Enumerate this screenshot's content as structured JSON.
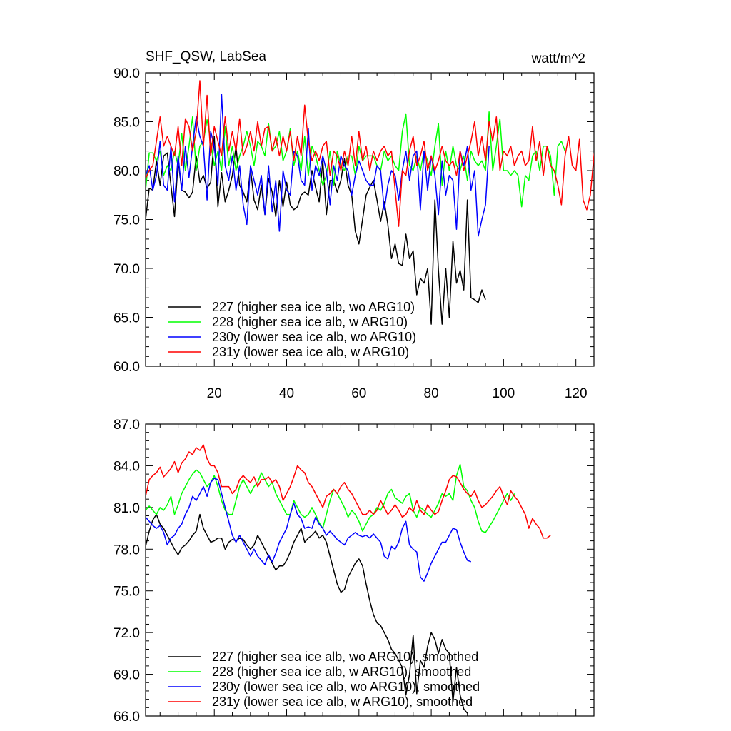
{
  "chart_data": [
    {
      "type": "line",
      "title": "SHF_QSW, LabSea",
      "units": "watt/m^2",
      "xlim": [
        1,
        125
      ],
      "ylim": [
        60,
        90
      ],
      "xticks": [
        20,
        40,
        60,
        80,
        100,
        120
      ],
      "yticks": [
        60,
        65,
        70,
        75,
        80,
        85,
        90
      ],
      "ytick_labels": [
        "60.0",
        "65.0",
        "70.0",
        "75.0",
        "80.0",
        "85.0",
        "90.0"
      ],
      "xtick_labels": [
        "20",
        "40",
        "60",
        "80",
        "100",
        "120"
      ],
      "legend_position": "bottom-left",
      "series": [
        {
          "name": "227 (higher sea ice alb, wo ARG10)",
          "color": "#000000",
          "values": [
            75.0,
            78.2,
            78.0,
            81.0,
            78.5,
            81.5,
            81.8,
            78.5,
            75.3,
            81.0,
            78.0,
            77.8,
            77.2,
            77.8,
            81.5,
            78.8,
            79.5,
            78.2,
            78.8,
            83.5,
            76.3,
            79.8,
            76.8,
            78.0,
            79.5,
            82.5,
            78.5,
            77.8,
            76.8,
            80.2,
            77.0,
            76.0,
            78.5,
            75.5,
            79.2,
            77.8,
            75.3,
            79.0,
            76.3,
            78.8,
            76.5,
            76.0,
            76.3,
            77.5,
            77.8,
            77.5,
            80.0,
            78.3,
            76.8,
            81.0,
            75.5,
            79.0,
            79.0,
            77.8,
            79.0,
            81.2,
            78.5,
            77.5,
            73.8,
            72.5,
            75.0,
            77.5,
            78.3,
            79.0,
            77.0,
            74.8,
            76.8,
            74.5,
            71.0,
            72.5,
            70.5,
            70.3,
            73.5,
            71.0,
            71.8,
            67.3,
            69.0,
            68.5,
            70.0,
            64.3,
            77.0,
            69.8,
            64.3,
            70.0,
            65.0,
            72.8,
            68.5,
            69.8,
            67.8,
            77.0,
            67.0,
            66.8,
            66.5,
            67.8,
            66.8
          ]
        },
        {
          "name": "228 (higher sea ice alb, w ARG10)",
          "color": "#00ff00",
          "values": [
            78.0,
            81.8,
            81.8,
            81.0,
            82.0,
            79.5,
            80.5,
            80.0,
            82.0,
            80.5,
            83.8,
            80.0,
            82.5,
            85.5,
            80.0,
            82.5,
            83.0,
            85.2,
            83.0,
            80.5,
            82.0,
            80.0,
            84.5,
            80.5,
            82.5,
            80.0,
            81.5,
            82.5,
            84.0,
            82.5,
            80.5,
            83.0,
            82.5,
            81.5,
            84.8,
            82.0,
            82.5,
            84.0,
            81.0,
            82.0,
            84.3,
            80.5,
            82.0,
            80.0,
            83.5,
            79.5,
            82.5,
            81.5,
            80.0,
            78.5,
            79.5,
            82.0,
            78.5,
            82.0,
            80.5,
            80.0,
            81.5,
            81.5,
            79.5,
            82.5,
            81.0,
            81.5,
            81.5,
            81.5,
            80.5,
            80.0,
            82.0,
            81.0,
            81.5,
            80.5,
            80.0,
            84.0,
            85.8,
            80.5,
            80.0,
            81.5,
            80.0,
            82.0,
            81.0,
            79.5,
            82.5,
            84.8,
            78.5,
            82.0,
            80.0,
            82.5,
            80.5,
            80.0,
            81.5,
            79.0,
            82.0,
            81.0,
            80.5,
            81.0,
            80.0,
            86.0,
            80.0,
            82.5,
            85.3,
            80.0,
            80.0,
            79.5,
            80.0,
            79.5,
            76.3,
            79.5,
            79.0,
            81.5,
            82.0,
            80.0,
            82.5,
            82.5,
            81.5,
            77.5,
            82.5,
            83.0,
            82.0
          ]
        },
        {
          "name": "230y (lower sea ice alb, wo ARG10)",
          "color": "#0000ff",
          "values": [
            79.5,
            80.5,
            78.0,
            79.5,
            83.0,
            78.5,
            78.0,
            82.5,
            76.8,
            81.5,
            78.0,
            82.5,
            79.3,
            82.5,
            85.5,
            83.5,
            82.5,
            77.0,
            84.0,
            82.5,
            78.5,
            87.8,
            80.5,
            79.0,
            81.5,
            78.0,
            80.5,
            76.5,
            74.5,
            80.5,
            79.0,
            77.5,
            79.5,
            75.5,
            80.5,
            75.8,
            79.0,
            73.8,
            80.0,
            78.0,
            77.5,
            82.0,
            81.5,
            79.0,
            78.5,
            84.3,
            78.0,
            80.5,
            79.5,
            81.5,
            80.0,
            76.5,
            80.5,
            79.0,
            81.5,
            80.5,
            80.0,
            77.5,
            79.5,
            81.0,
            80.0,
            79.0,
            78.5,
            78.5,
            80.5,
            80.0,
            76.0,
            78.5,
            80.0,
            79.5,
            77.0,
            80.0,
            82.0,
            79.0,
            81.5,
            82.0,
            76.0,
            82.0,
            78.0,
            81.5,
            79.5,
            75.5,
            81.0,
            77.5,
            79.5,
            79.0,
            74.0,
            82.0,
            80.5,
            82.5,
            78.0,
            80.0,
            73.3,
            75.0,
            76.5,
            82.5
          ]
        },
        {
          "name": "231y (lower sea ice alb, w ARG10)",
          "color": "#ff0000",
          "values": [
            79.2,
            80.0,
            80.5,
            83.0,
            85.5,
            82.5,
            83.5,
            82.5,
            81.5,
            84.5,
            80.5,
            85.3,
            84.5,
            82.0,
            84.0,
            89.2,
            82.5,
            87.7,
            81.5,
            84.5,
            83.0,
            81.5,
            85.5,
            82.0,
            84.0,
            82.0,
            85.3,
            81.5,
            82.5,
            84.0,
            82.0,
            85.0,
            82.5,
            84.3,
            84.5,
            82.0,
            83.5,
            81.5,
            83.5,
            82.0,
            84.0,
            81.0,
            83.5,
            81.5,
            86.7,
            83.0,
            81.0,
            82.0,
            81.0,
            82.5,
            83.0,
            79.5,
            82.0,
            81.5,
            80.0,
            82.0,
            80.5,
            83.5,
            80.5,
            84.0,
            81.0,
            82.5,
            80.0,
            82.0,
            81.0,
            82.0,
            82.5,
            81.5,
            82.0,
            78.0,
            74.3,
            80.0,
            79.5,
            82.0,
            83.5,
            80.5,
            81.5,
            83.0,
            80.0,
            81.5,
            80.0,
            81.0,
            82.5,
            81.0,
            80.5,
            81.0,
            79.5,
            82.0,
            80.0,
            81.5,
            83.0,
            85.0,
            81.5,
            83.5,
            81.0,
            85.0,
            83.0,
            85.5,
            80.0,
            82.0,
            81.5,
            82.5,
            80.5,
            81.5,
            82.0,
            80.5,
            81.0,
            84.5,
            81.0,
            83.0,
            79.5,
            82.5,
            80.5,
            80.0,
            78.5,
            76.5,
            81.5,
            83.5,
            80.5,
            80.0,
            83.2,
            77.0,
            76.0,
            77.5,
            81.5,
            84.0
          ]
        }
      ]
    },
    {
      "type": "line",
      "xlim": [
        1,
        125
      ],
      "ylim": [
        66,
        87
      ],
      "xticks": [
        20,
        40,
        60,
        80,
        100,
        120
      ],
      "yticks": [
        66,
        69,
        72,
        75,
        78,
        81,
        84,
        87
      ],
      "ytick_labels": [
        "66.0",
        "69.0",
        "72.0",
        "75.0",
        "78.0",
        "81.0",
        "84.0",
        "87.0"
      ],
      "legend_position": "bottom-left",
      "series": [
        {
          "name": "227 (higher sea ice alb, wo ARG10), smoothed",
          "color": "#000000",
          "values": [
            78.2,
            79.3,
            80.1,
            80.5,
            79.8,
            79.5,
            79.0,
            78.5,
            78.0,
            77.6,
            78.1,
            78.3,
            78.6,
            79.0,
            79.3,
            80.5,
            79.5,
            79.0,
            78.5,
            78.6,
            78.8,
            78.8,
            78.0,
            78.5,
            78.7,
            78.6,
            78.8,
            78.7,
            78.3,
            78.0,
            78.3,
            79.0,
            78.5,
            78.0,
            77.5,
            77.0,
            76.5,
            76.8,
            76.8,
            77.2,
            77.8,
            78.5,
            79.0,
            79.5,
            78.5,
            78.8,
            79.0,
            79.3,
            78.8,
            79.0,
            78.5,
            77.5,
            76.5,
            75.5,
            74.9,
            75.1,
            76.0,
            76.5,
            77.0,
            77.3,
            76.8,
            75.5,
            74.3,
            73.3,
            72.7,
            72.5,
            72.0,
            71.5,
            70.8,
            70.5,
            70.0,
            69.5,
            67.5,
            69.0,
            71.8,
            67.6,
            70.0,
            69.5,
            71.0,
            72.0,
            71.5,
            70.5,
            71.5,
            70.8,
            70.5,
            67.0,
            69.5,
            67.5,
            66.5,
            66.2
          ]
        },
        {
          "name": "228 (higher sea ice alb, w ARG10), smoothed",
          "color": "#00ff00",
          "values": [
            80.8,
            81.1,
            80.8,
            80.5,
            81.0,
            80.8,
            81.2,
            81.8,
            80.5,
            81.2,
            82.0,
            82.5,
            83.0,
            83.4,
            83.7,
            83.5,
            83.0,
            82.5,
            82.8,
            83.3,
            82.5,
            81.5,
            80.8,
            80.5,
            80.5,
            81.5,
            82.5,
            83.0,
            82.5,
            82.0,
            82.5,
            82.8,
            83.5,
            83.0,
            82.5,
            82.8,
            82.0,
            81.5,
            81.0,
            80.5,
            80.5,
            81.5,
            81.0,
            80.5,
            80.3,
            80.5,
            81.0,
            80.5,
            79.9,
            79.5,
            80.5,
            81.5,
            82.3,
            82.0,
            81.5,
            81.0,
            80.3,
            80.8,
            80.5,
            80.0,
            79.3,
            79.8,
            80.3,
            80.5,
            81.0,
            80.8,
            81.3,
            82.0,
            82.3,
            81.7,
            81.5,
            81.3,
            81.8,
            82.0,
            80.8,
            80.3,
            81.0,
            80.8,
            80.5,
            80.3,
            80.8,
            81.3,
            82.0,
            81.8,
            82.0,
            81.5,
            83.3,
            84.1,
            82.5,
            82.2,
            81.5,
            81.0,
            80.0,
            79.3,
            79.2,
            79.6,
            80.0,
            80.5,
            81.0,
            81.5,
            82.0,
            81.5,
            82.0
          ]
        },
        {
          "name": "230y (lower sea ice alb, wo ARG10), smoothed",
          "color": "#0000ff",
          "values": [
            80.3,
            80.0,
            79.7,
            79.5,
            79.7,
            79.2,
            78.3,
            78.8,
            79.0,
            79.5,
            79.8,
            80.5,
            81.0,
            81.8,
            81.5,
            82.0,
            82.5,
            81.8,
            82.8,
            83.1,
            83.0,
            82.0,
            81.0,
            80.0,
            79.0,
            78.5,
            79.0,
            78.5,
            78.0,
            77.5,
            78.0,
            77.5,
            77.2,
            76.9,
            77.6,
            77.1,
            77.7,
            78.5,
            79.0,
            79.5,
            80.5,
            81.3,
            80.5,
            80.2,
            79.5,
            79.6,
            79.5,
            80.3,
            79.8,
            79.5,
            79.0,
            79.3,
            79.0,
            78.7,
            78.5,
            78.3,
            78.8,
            79.0,
            79.2,
            79.0,
            78.9,
            79.0,
            78.8,
            79.1,
            78.8,
            78.5,
            77.5,
            77.3,
            78.2,
            78.0,
            78.5,
            79.5,
            80.0,
            78.3,
            78.0,
            77.8,
            76.0,
            75.7,
            76.3,
            77.0,
            77.5,
            78.0,
            78.5,
            78.5,
            79.0,
            79.5,
            79.4,
            78.5,
            77.8,
            77.2,
            77.1
          ]
        },
        {
          "name": "231y (lower sea ice alb, w ARG10), smoothed",
          "color": "#ff0000",
          "values": [
            81.8,
            83.0,
            83.3,
            83.5,
            83.9,
            83.2,
            83.5,
            83.8,
            84.3,
            83.5,
            84.2,
            84.5,
            85.0,
            84.8,
            85.3,
            85.1,
            85.5,
            84.5,
            84.0,
            84.0,
            83.5,
            82.5,
            82.5,
            82.5,
            82.0,
            82.3,
            83.0,
            83.3,
            83.0,
            82.8,
            83.2,
            82.5,
            83.0,
            83.0,
            83.2,
            82.8,
            83.0,
            82.5,
            81.5,
            82.0,
            82.5,
            83.2,
            84.0,
            83.7,
            83.5,
            82.8,
            82.5,
            82.0,
            81.5,
            81.0,
            81.8,
            82.0,
            82.3,
            82.0,
            82.5,
            82.8,
            82.3,
            82.0,
            81.5,
            81.0,
            80.5,
            80.5,
            80.8,
            80.5,
            80.8,
            81.5,
            81.0,
            80.5,
            80.8,
            81.2,
            80.8,
            80.3,
            80.5,
            81.0,
            80.7,
            81.5,
            80.8,
            80.5,
            81.2,
            80.8,
            80.5,
            80.7,
            81.5,
            82.2,
            83.0,
            83.3,
            83.2,
            82.8,
            82.3,
            82.0,
            81.8,
            82.2,
            81.5,
            81.0,
            81.2,
            81.5,
            81.8,
            82.2,
            82.5,
            81.8,
            81.2,
            82.2,
            81.8,
            81.5,
            81.0,
            80.5,
            79.5,
            80.2,
            79.8,
            79.5,
            78.8,
            78.8,
            79.0
          ]
        }
      ]
    }
  ]
}
